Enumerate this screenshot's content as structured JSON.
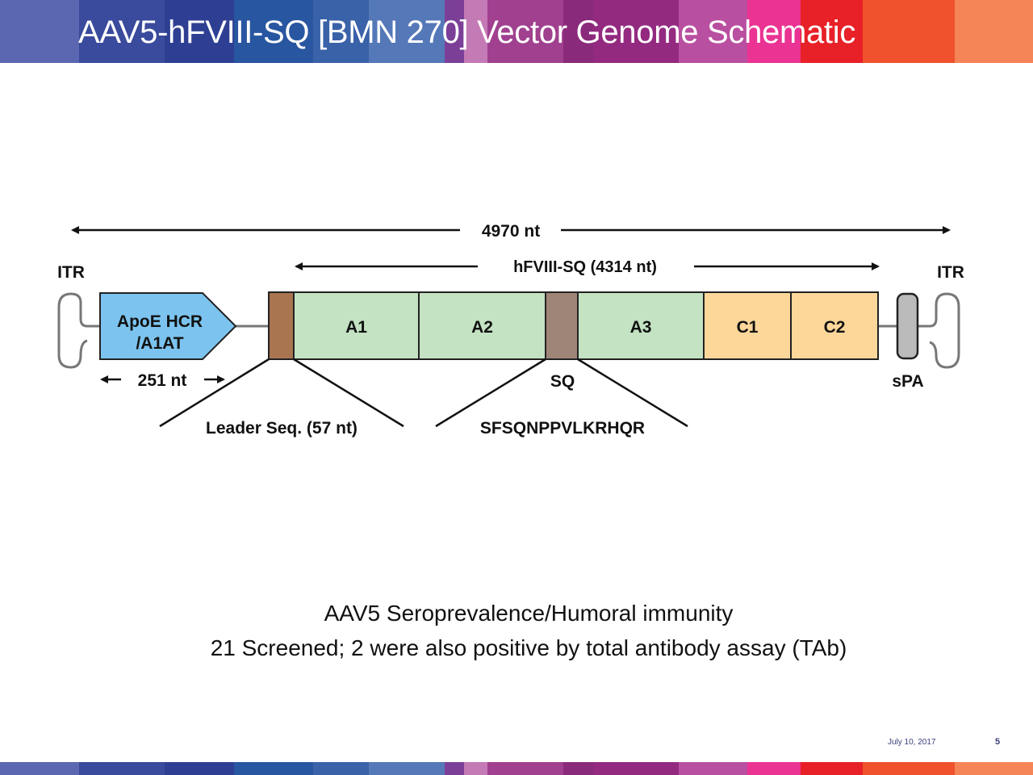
{
  "slide": {
    "title": "AAV5-hFVIII-SQ [BMN 270] Vector Genome Schematic",
    "header_band_colors": [
      "#5b67b0",
      "#3a4a9c",
      "#2e3f93",
      "#2956a0",
      "#3a62a8",
      "#5578b8",
      "#7c3f98",
      "#c47ab5",
      "#a0408f",
      "#8a2a7a",
      "#932a80",
      "#b94fa0",
      "#ea3393",
      "#e82027",
      "#f0522d",
      "#f58457"
    ],
    "caption_line1": "AAV5 Seroprevalence/Humoral immunity",
    "caption_line2": "21 Screened; 2 were also positive by total antibody assay (TAb)",
    "footer_date": "July 10, 2017",
    "page_number": "5"
  },
  "diagram": {
    "total_length_label": "4970 nt",
    "transgene_length_label": "hFVIII-SQ (4314 nt)",
    "itr_left_label": "ITR",
    "itr_right_label": "ITR",
    "promoter_line1": "ApoE HCR",
    "promoter_line2": "/A1AT",
    "promoter_length_label": "251 nt",
    "domains": [
      {
        "label": "A1",
        "color": "#c3e3c3"
      },
      {
        "label": "A2",
        "color": "#c3e3c3"
      },
      {
        "label": "A3",
        "color": "#c3e3c3"
      },
      {
        "label": "C1",
        "color": "#fdd79a"
      },
      {
        "label": "C2",
        "color": "#fdd79a"
      }
    ],
    "sq_label": "SQ",
    "sq_sequence": "SFSQNPPVLKRHQR",
    "leader_label": "Leader Seq. (57 nt)",
    "spa_label": "sPA",
    "colors": {
      "promoter": "#7cc4ef",
      "leader": "#a87550",
      "sq": "#9e8578",
      "spa": "#bbbbbb",
      "itr_line": "#777777"
    }
  }
}
